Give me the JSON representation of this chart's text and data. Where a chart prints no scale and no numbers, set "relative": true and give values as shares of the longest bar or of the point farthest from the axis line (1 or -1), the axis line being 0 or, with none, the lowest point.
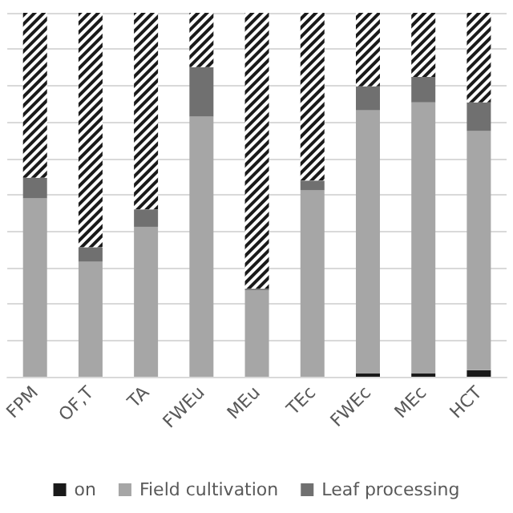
{
  "chart_data": {
    "type": "bar",
    "stacked": true,
    "relative": true,
    "grid": "y",
    "legend": "bottom",
    "categories": [
      "FPM",
      "OF,T",
      "TA",
      "FWEu",
      "MEu",
      "TEc",
      "FWEc",
      "MEc",
      "HCT"
    ],
    "series": [
      {
        "name": "on",
        "color": "#1a1a1a",
        "values": [
          0,
          0,
          0,
          0,
          0,
          0,
          0.009,
          0.009,
          0.018
        ]
      },
      {
        "name": "Field cultivation",
        "color": "#a6a6a6",
        "values": [
          0.49,
          0.316,
          0.412,
          0.715,
          0.237,
          0.513,
          0.723,
          0.745,
          0.657
        ]
      },
      {
        "name": "Leaf processing",
        "color": "#707070",
        "values": [
          0.057,
          0.04,
          0.048,
          0.136,
          0.005,
          0.026,
          0.066,
          0.07,
          0.079
        ]
      },
      {
        "color": "#1a1a1a",
        "values": [
          0.453,
          0.644,
          0.54,
          0.149,
          0.758,
          0.461,
          0.202,
          0.176,
          0.246
        ]
      }
    ]
  }
}
